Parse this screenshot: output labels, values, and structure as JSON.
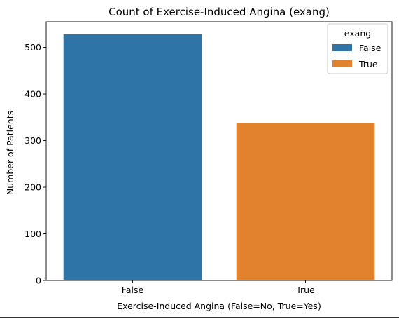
{
  "chart_data": {
    "type": "bar",
    "title": "Count of Exercise-Induced Angina (exang)",
    "xlabel": "Exercise-Induced Angina (False=No, True=Yes)",
    "ylabel": "Number of Patients",
    "categories": [
      "False",
      "True"
    ],
    "values": [
      528,
      337
    ],
    "colors": [
      "#2f74a6",
      "#e3822d"
    ],
    "ylim": [
      0,
      555
    ],
    "yticks": [
      0,
      100,
      200,
      300,
      400,
      500
    ],
    "grid": false,
    "legend": {
      "title": "exang",
      "placement": "top-right",
      "entries": [
        {
          "label": "False",
          "color": "#2f74a6"
        },
        {
          "label": "True",
          "color": "#e3822d"
        }
      ]
    }
  }
}
